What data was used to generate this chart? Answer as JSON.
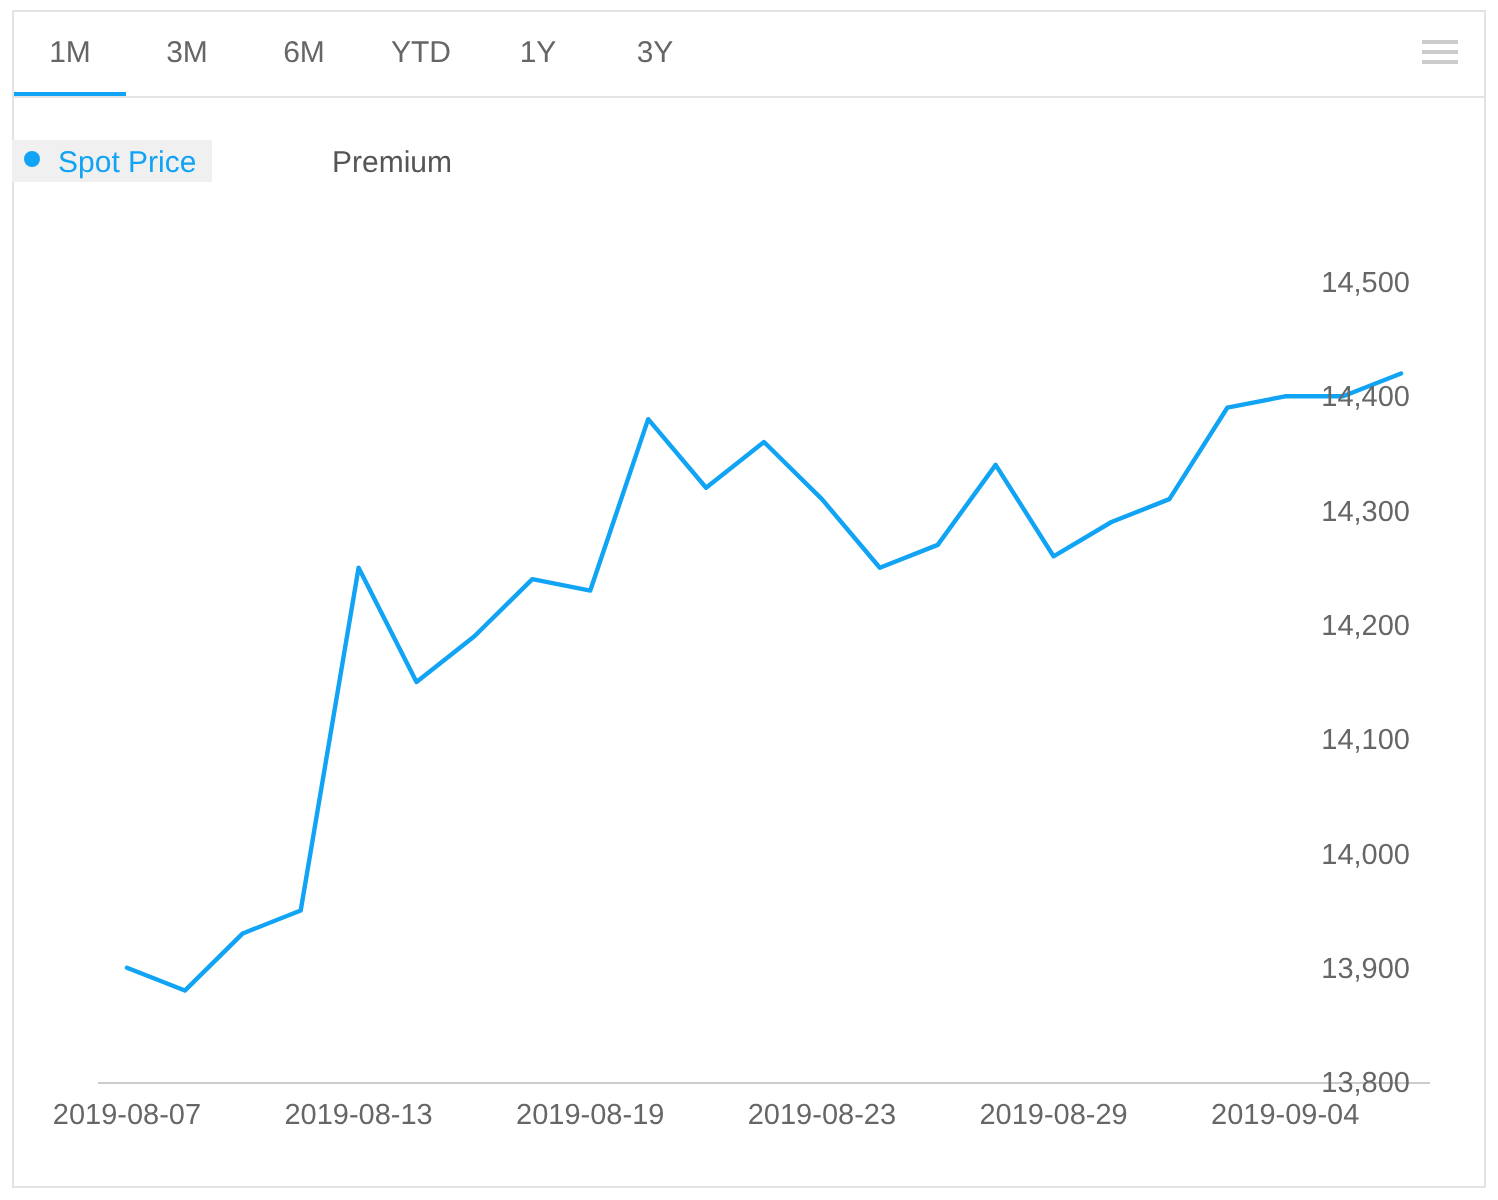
{
  "chart_data": {
    "type": "line",
    "categories": [
      "2019-08-07",
      null,
      null,
      null,
      "2019-08-13",
      null,
      null,
      null,
      "2019-08-19",
      null,
      null,
      null,
      "2019-08-23",
      null,
      null,
      null,
      "2019-08-29",
      null,
      null,
      null,
      "2019-09-04",
      null,
      null
    ],
    "series": [
      {
        "name": "Spot Price",
        "color": "#11a3f4",
        "values": [
          13900,
          13880,
          13930,
          13950,
          14250,
          14150,
          14190,
          14240,
          14230,
          14380,
          14320,
          14360,
          14310,
          14250,
          14270,
          14340,
          14260,
          14290,
          14310,
          14390,
          14400,
          14400,
          14420
        ]
      }
    ],
    "ylim": [
      13800,
      14500
    ],
    "yticks": [
      {
        "value": 13800,
        "label": "13,800"
      },
      {
        "value": 13900,
        "label": "13,900"
      },
      {
        "value": 14000,
        "label": "14,000"
      },
      {
        "value": 14100,
        "label": "14,100"
      },
      {
        "value": 14200,
        "label": "14,200"
      },
      {
        "value": 14300,
        "label": "14,300"
      },
      {
        "value": 14400,
        "label": "14,400"
      },
      {
        "value": 14500,
        "label": "14,500"
      }
    ],
    "legend": "top left",
    "annotations": [
      "1M",
      "3M",
      "6M",
      "YTD",
      "1Y",
      "3Y",
      "Premium"
    ]
  }
}
